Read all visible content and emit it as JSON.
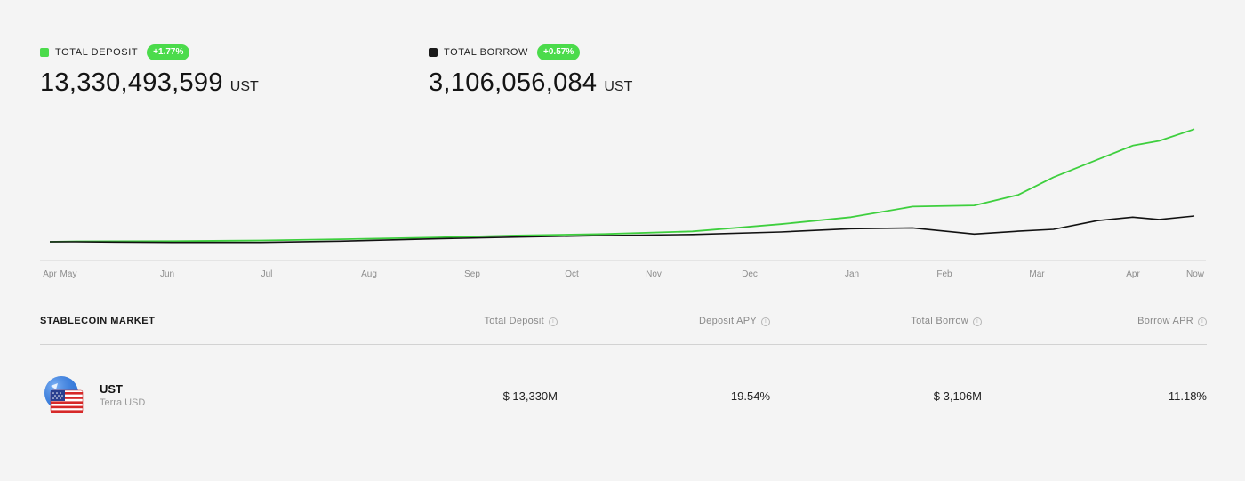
{
  "stats": {
    "deposit": {
      "label": "TOTAL DEPOSIT",
      "badge": "+1.77%",
      "value": "13,330,493,599",
      "unit": "UST",
      "color": "#4bdb4b"
    },
    "borrow": {
      "label": "TOTAL BORROW",
      "badge": "+0.57%",
      "value": "3,106,056,084",
      "unit": "UST",
      "color": "#1a1a1a"
    }
  },
  "chart_data": {
    "type": "line",
    "x_labels": [
      "Apr",
      "May",
      "Jun",
      "Jul",
      "Aug",
      "Sep",
      "Oct",
      "Nov",
      "Dec",
      "Jan",
      "Feb",
      "Mar",
      "Apr",
      "Now"
    ],
    "x": [
      0,
      0.3,
      1.4,
      2.4,
      3.3,
      4.4,
      5.3,
      6.3,
      7.3,
      8.3,
      9.1,
      9.8,
      10.5,
      11.0,
      11.4,
      11.9,
      12.3,
      12.6,
      13.0
    ],
    "series": [
      {
        "name": "Total Deposit",
        "color": "#3ecf3e",
        "values": [
          0,
          0.4,
          0.5,
          1.1,
          2.2,
          3.7,
          5.4,
          6.6,
          8.9,
          15.0,
          21.0,
          30.0,
          31.0,
          40.0,
          55.0,
          70.0,
          82.0,
          86.0,
          96.0
        ]
      },
      {
        "name": "Total Borrow",
        "color": "#111111",
        "values": [
          0,
          0,
          -0.5,
          -0.5,
          0.5,
          2.6,
          4.0,
          5.3,
          6.2,
          8.3,
          11.1,
          11.8,
          6.6,
          9.0,
          10.6,
          18.0,
          21.0,
          19.0,
          22.0
        ]
      }
    ],
    "ylim": [
      -5,
      100
    ],
    "grid": false,
    "legend": "top"
  },
  "market": {
    "title": "STABLECOIN MARKET",
    "columns": [
      "Total Deposit",
      "Deposit APY",
      "Total Borrow",
      "Borrow APR"
    ],
    "info_glyph": "i",
    "rows": [
      {
        "symbol": "UST",
        "name": "Terra USD",
        "total_deposit": "$ 13,330M",
        "deposit_apy": "19.54%",
        "total_borrow": "$ 3,106M",
        "borrow_apr": "11.18%"
      }
    ]
  }
}
